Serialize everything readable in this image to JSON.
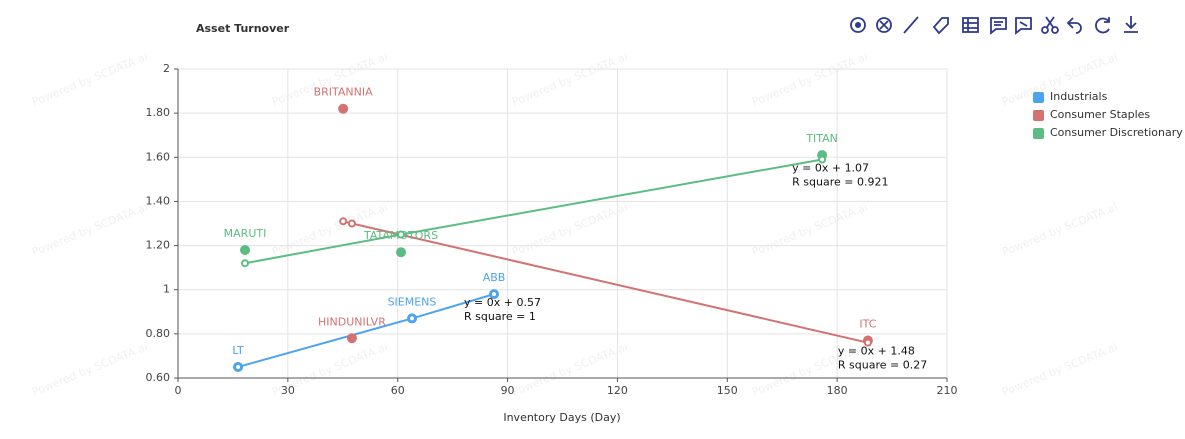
{
  "chart_data": {
    "type": "scatter",
    "title": "Asset Turnover",
    "x_label": "Inventory Days (Day)",
    "watermark": "Powered by SCDATA.ai",
    "xlim": [
      0,
      210
    ],
    "xticks": [
      0,
      30,
      60,
      90,
      120,
      150,
      180,
      210
    ],
    "ylim": [
      0.6,
      2
    ],
    "yticks": [
      {
        "value": 0.6,
        "label": "0.60"
      },
      {
        "value": 0.8,
        "label": "0.80"
      },
      1,
      {
        "value": 1.2,
        "label": "1.20"
      },
      {
        "value": 1.4,
        "label": "1.40"
      },
      {
        "value": 1.6,
        "label": "1.60"
      },
      {
        "value": 1.8,
        "label": "1.80"
      },
      2
    ],
    "grid": true,
    "legend": "right",
    "series": [
      {
        "name": "Industrials",
        "color": "#4da3ee",
        "labels": [
          "LT",
          "SIEMENS",
          "ABB"
        ],
        "x": [
          16.4,
          63.9,
          86.3
        ],
        "values": [
          0.65,
          0.87,
          0.98
        ],
        "trendline": {
          "x": [
            16.4,
            63.9,
            86.3
          ],
          "y": [
            0.65,
            0.87,
            0.98
          ],
          "equation": "y = 0x + 0.57",
          "r_square": "R square = 1"
        }
      },
      {
        "name": "Consumer Staples",
        "color": "#d47272",
        "labels": [
          "BRITANNIA",
          "HINDUNILVR",
          "ITC"
        ],
        "x": [
          45.1,
          47.5,
          188.4
        ],
        "values": [
          1.82,
          0.78,
          0.77
        ],
        "trendline": {
          "x": [
            45.1,
            47.5,
            188.4
          ],
          "y": [
            1.31,
            1.3,
            0.76
          ],
          "equation": "y = 0x + 1.48",
          "r_square": "R square = 0.27"
        }
      },
      {
        "name": "Consumer Discretionary",
        "color": "#5bbd82",
        "labels": [
          "MARUTI",
          "TATAMOTORS",
          "TITAN"
        ],
        "x": [
          18.3,
          60.9,
          175.9
        ],
        "values": [
          1.18,
          1.17,
          1.61
        ],
        "trendline": {
          "x": [
            18.3,
            60.9,
            175.9
          ],
          "y": [
            1.12,
            1.25,
            1.59
          ],
          "equation": "y = 0x + 1.07",
          "r_square": "R square = 0.921"
        }
      }
    ]
  }
}
